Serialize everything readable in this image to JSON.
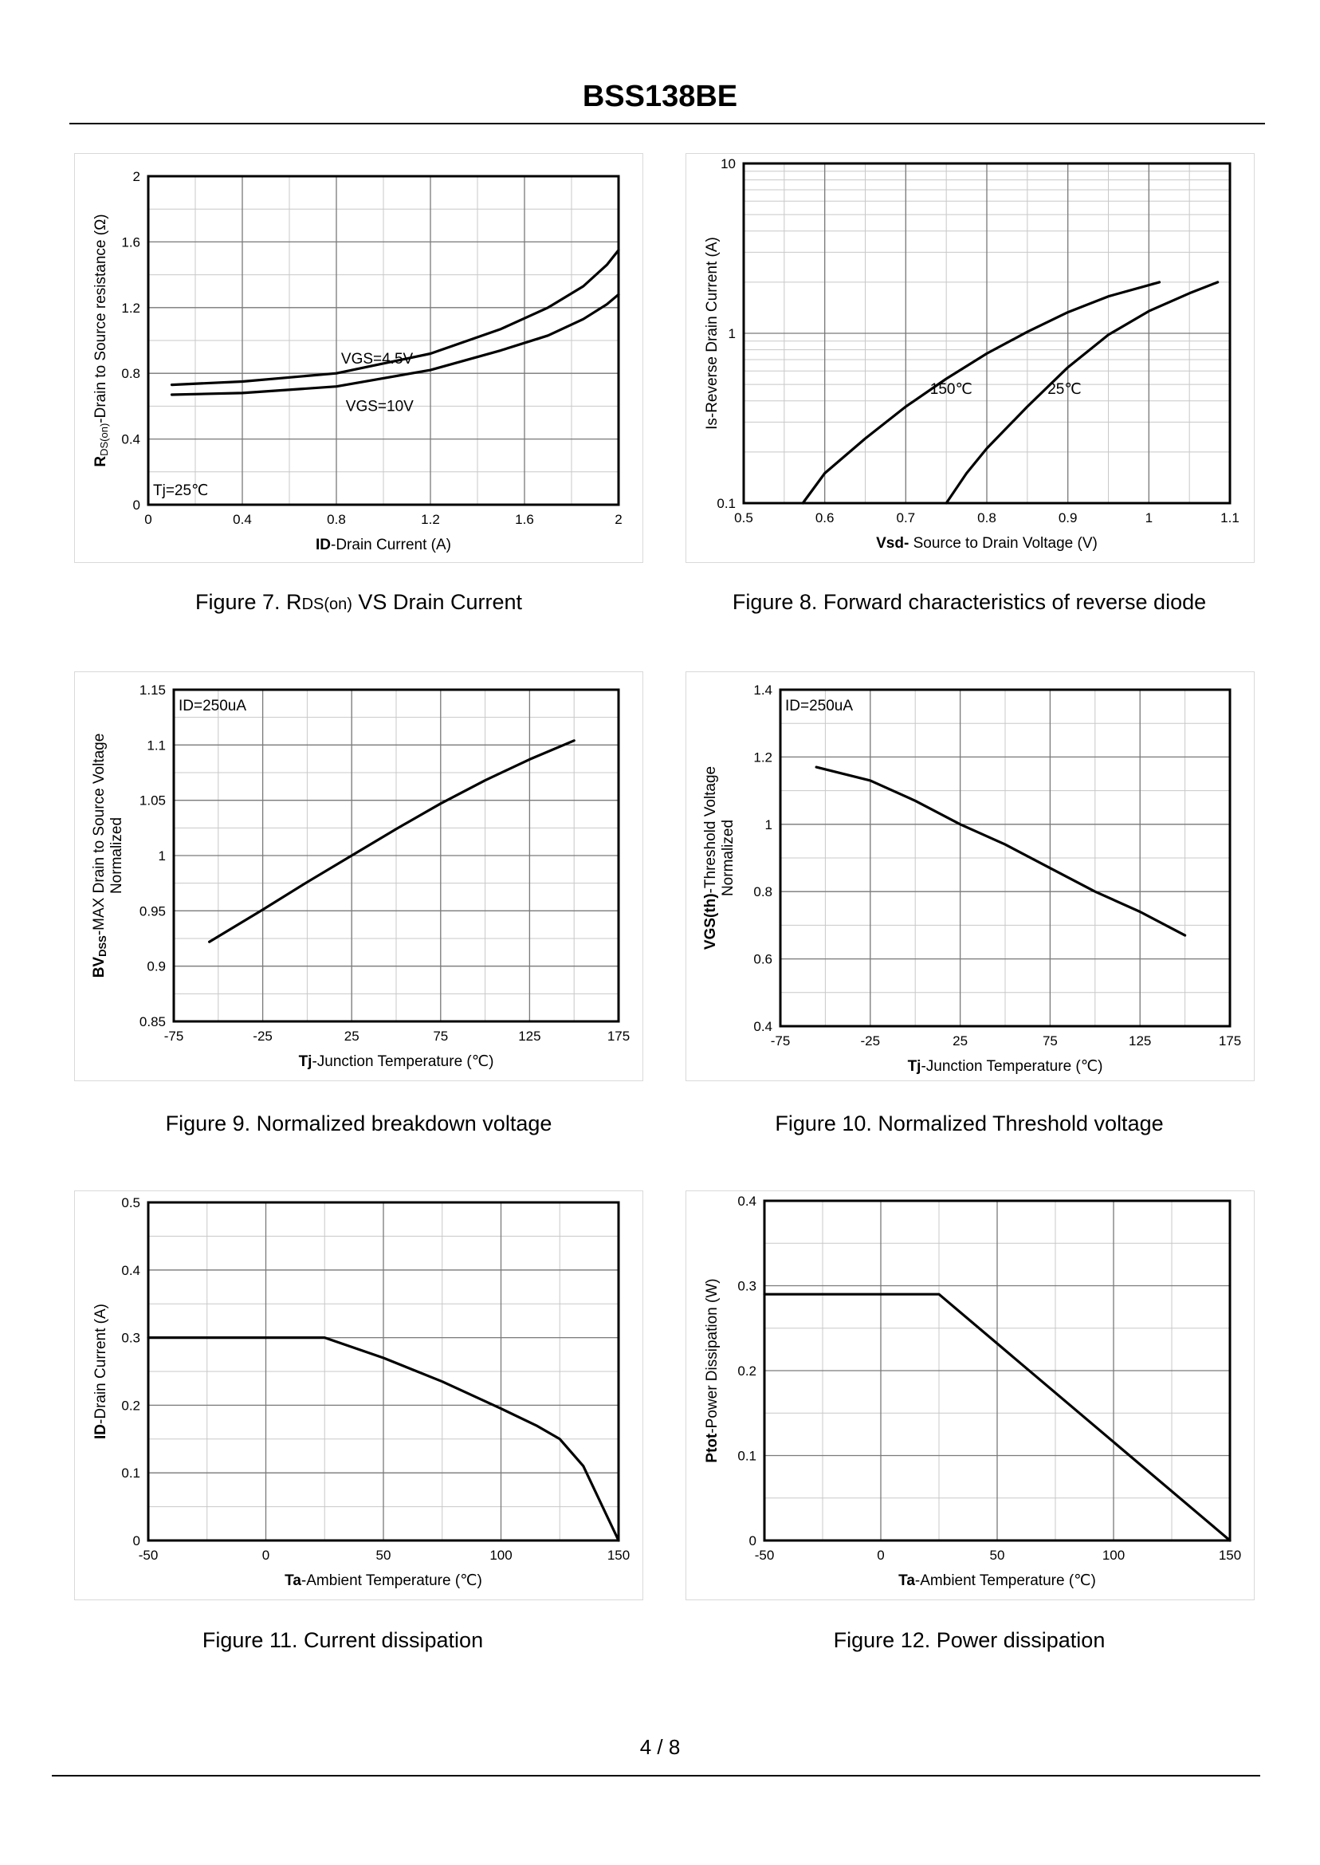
{
  "header": {
    "title": "BSS138BE"
  },
  "footer": {
    "page": "4 / 8"
  },
  "figures": [
    {
      "caption": "Figure 7.  R DS(on) VS Drain Current",
      "caption_parts": [
        "Figure 7.  R",
        "DS(on)",
        " VS Drain Current"
      ],
      "chart_data": {
        "type": "line",
        "xlabel_bold": "ID",
        "xlabel_rest": "-Drain Current (A)",
        "ylabel_bold": "R",
        "ylabel_sub": "DS(on)",
        "ylabel_rest": "-Drain to Source resistance (Ω)",
        "xlim": [
          0,
          2
        ],
        "ylim": [
          0,
          2
        ],
        "x_ticks": [
          "0",
          "0.4",
          "0.8",
          "1.2",
          "1.6",
          "2"
        ],
        "y_ticks": [
          "0",
          "0.4",
          "0.8",
          "1.2",
          "1.6",
          "2"
        ],
        "annotation": "Tj=25℃",
        "series": [
          {
            "name": "VGS=4.5V",
            "x": [
              0.1,
              0.4,
              0.8,
              1.2,
              1.5,
              1.7,
              1.85,
              1.95,
              2.0
            ],
            "y": [
              0.73,
              0.75,
              0.8,
              0.92,
              1.07,
              1.2,
              1.33,
              1.46,
              1.55
            ]
          },
          {
            "name": "VGS=10V",
            "x": [
              0.1,
              0.4,
              0.8,
              1.2,
              1.5,
              1.7,
              1.85,
              1.95,
              2.0
            ],
            "y": [
              0.67,
              0.68,
              0.72,
              0.82,
              0.94,
              1.03,
              1.13,
              1.22,
              1.28
            ]
          }
        ]
      }
    },
    {
      "caption": "Figure 8.  Forward characteristics of reverse diode",
      "chart_data": {
        "type": "line",
        "y_scale": "log",
        "xlabel_bold": "Vsd-",
        "xlabel_rest": " Source to Drain Voltage (V)",
        "ylabel": "Is-Reverse  Drain Current (A)",
        "xlim": [
          0.5,
          1.1
        ],
        "ylim": [
          0.1,
          10
        ],
        "x_ticks": [
          "0.5",
          "0.6",
          "0.7",
          "0.8",
          "0.9",
          "1",
          "1.1"
        ],
        "y_ticks": [
          "0.1",
          "1",
          "10"
        ],
        "series": [
          {
            "name": "150℃",
            "x": [
              0.573,
              0.6,
              0.65,
              0.7,
              0.75,
              0.8,
              0.85,
              0.9,
              0.95,
              1.013
            ],
            "y": [
              0.1,
              0.15,
              0.24,
              0.37,
              0.54,
              0.76,
              1.02,
              1.33,
              1.65,
              2.0
            ]
          },
          {
            "name": "25℃",
            "x": [
              0.75,
              0.775,
              0.8,
              0.85,
              0.9,
              0.95,
              1.0,
              1.05,
              1.085
            ],
            "y": [
              0.1,
              0.15,
              0.21,
              0.37,
              0.63,
              0.98,
              1.35,
              1.72,
              2.0
            ]
          }
        ]
      }
    },
    {
      "caption": "Figure 9.  Normalized breakdown voltage",
      "chart_data": {
        "type": "line",
        "xlabel_bold": "Tj",
        "xlabel_rest": "-Junction  Temperature  (℃)",
        "ylabel_bold": "BV",
        "ylabel_sub": "DSS",
        "ylabel_rest": "-MAX Drain to Source Voltage",
        "ylabel_line2": "Normalized",
        "xlim": [
          -75,
          175
        ],
        "ylim": [
          0.85,
          1.15
        ],
        "x_ticks": [
          "-75",
          "-25",
          "25",
          "75",
          "125",
          "175"
        ],
        "y_ticks": [
          "0.85",
          "0.9",
          "0.95",
          "1",
          "1.05",
          "1.1",
          "1.15"
        ],
        "annotation": "ID=250uA",
        "series": [
          {
            "name": "",
            "x": [
              -55,
              -25,
              0,
              25,
              50,
              75,
              100,
              125,
              150
            ],
            "y": [
              0.922,
              0.951,
              0.976,
              1.0,
              1.024,
              1.047,
              1.068,
              1.087,
              1.104
            ]
          }
        ]
      }
    },
    {
      "caption": "Figure 10.  Normalized Threshold voltage",
      "chart_data": {
        "type": "line",
        "xlabel_bold": "Tj",
        "xlabel_rest": "-Junction  Temperature  (℃)",
        "ylabel_bold": "VGS(th)",
        "ylabel_rest": "-Threshold  Voltage",
        "ylabel_line2": "Normalized",
        "xlim": [
          -75,
          175
        ],
        "ylim": [
          0.4,
          1.4
        ],
        "x_ticks": [
          "-75",
          "-25",
          "25",
          "75",
          "125",
          "175"
        ],
        "y_ticks": [
          "0.4",
          "0.6",
          "0.8",
          "1",
          "1.2",
          "1.4"
        ],
        "annotation": "ID=250uA",
        "series": [
          {
            "name": "",
            "x": [
              -55,
              -25,
              0,
              25,
              50,
              75,
              100,
              125,
              150
            ],
            "y": [
              1.17,
              1.13,
              1.07,
              1.0,
              0.94,
              0.87,
              0.8,
              0.74,
              0.67
            ]
          }
        ]
      }
    },
    {
      "caption": "Figure 11.  Current dissipation",
      "chart_data": {
        "type": "line",
        "xlabel_bold": "Ta",
        "xlabel_rest": "-Ambient Temperature  (℃)",
        "ylabel_bold": "ID",
        "ylabel_rest": "-Drain Current (A)",
        "xlim": [
          -50,
          150
        ],
        "ylim": [
          0,
          0.5
        ],
        "x_ticks": [
          "-50",
          "0",
          "50",
          "100",
          "150"
        ],
        "y_ticks": [
          "0",
          "0.1",
          "0.2",
          "0.3",
          "0.4",
          "0.5"
        ],
        "series": [
          {
            "name": "",
            "x": [
              -50,
              25,
              50,
              75,
              100,
              115,
              125,
              135,
              150
            ],
            "y": [
              0.3,
              0.3,
              0.27,
              0.235,
              0.195,
              0.17,
              0.15,
              0.11,
              0.0
            ]
          }
        ]
      }
    },
    {
      "caption": "Figure 12.  Power dissipation",
      "chart_data": {
        "type": "line",
        "xlabel_bold": "Ta",
        "xlabel_rest": "-Ambient Temperature  (℃)",
        "ylabel_bold": "Ptot",
        "ylabel_rest": "-Power Dissipation  (W)",
        "xlim": [
          -50,
          150
        ],
        "ylim": [
          0,
          0.4
        ],
        "x_ticks": [
          "-50",
          "0",
          "50",
          "100",
          "150"
        ],
        "y_ticks": [
          "0",
          "0.1",
          "0.2",
          "0.3",
          "0.4"
        ],
        "series": [
          {
            "name": "",
            "x": [
              -50,
              25,
              150
            ],
            "y": [
              0.29,
              0.29,
              0.0
            ]
          }
        ]
      }
    }
  ]
}
